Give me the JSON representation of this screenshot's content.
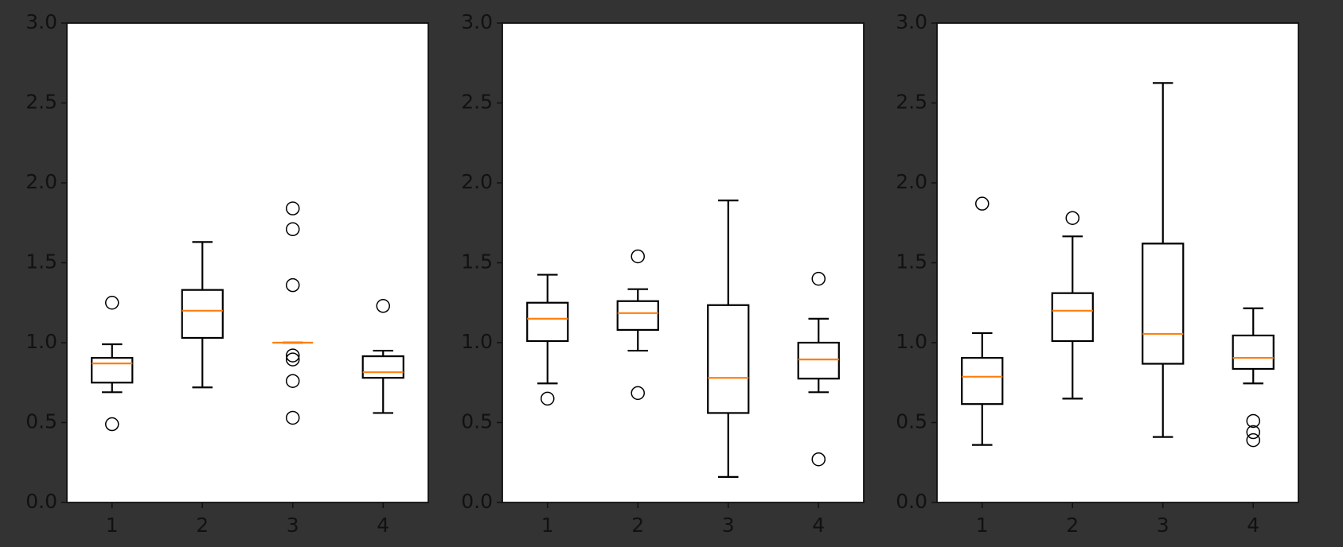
{
  "chart_data": [
    {
      "type": "box",
      "categories": [
        "1",
        "2",
        "3",
        "4"
      ],
      "xlim": [
        0.5,
        4.5
      ],
      "ylim": [
        0,
        3
      ],
      "yticks": [
        {
          "value": 0,
          "label": "0.0"
        },
        {
          "value": 0.5,
          "label": "0.5"
        },
        {
          "value": 1,
          "label": "1.0"
        },
        {
          "value": 1.5,
          "label": "1.5"
        },
        {
          "value": 2,
          "label": "2.0"
        },
        {
          "value": 2.5,
          "label": "2.5"
        },
        {
          "value": 3,
          "label": "3.0"
        }
      ],
      "box_color": "#000000",
      "median_color": "#ff7f0e",
      "boxes": [
        {
          "whislo": 0.69,
          "q1": 0.75,
          "med": 0.87,
          "q3": 0.905,
          "whishi": 0.99,
          "fliers": [
            1.25,
            0.49
          ]
        },
        {
          "whislo": 0.72,
          "q1": 1.03,
          "med": 1.2,
          "q3": 1.33,
          "whishi": 1.63,
          "fliers": []
        },
        {
          "whislo": 1.0,
          "q1": 1.0,
          "med": 1.0,
          "q3": 1.0,
          "whishi": 1.0,
          "fliers": [
            1.84,
            1.71,
            1.36,
            0.92,
            0.895,
            0.76,
            0.53
          ]
        },
        {
          "whislo": 0.56,
          "q1": 0.78,
          "med": 0.815,
          "q3": 0.915,
          "whishi": 0.95,
          "fliers": [
            1.23
          ]
        }
      ]
    },
    {
      "type": "box",
      "categories": [
        "1",
        "2",
        "3",
        "4"
      ],
      "xlim": [
        0.5,
        4.5
      ],
      "ylim": [
        0,
        3
      ],
      "yticks": [
        {
          "value": 0,
          "label": "0.0"
        },
        {
          "value": 0.5,
          "label": "0.5"
        },
        {
          "value": 1,
          "label": "1.0"
        },
        {
          "value": 1.5,
          "label": "1.5"
        },
        {
          "value": 2,
          "label": "2.0"
        },
        {
          "value": 2.5,
          "label": "2.5"
        },
        {
          "value": 3,
          "label": "3.0"
        }
      ],
      "box_color": "#000000",
      "median_color": "#ff7f0e",
      "boxes": [
        {
          "whislo": 0.745,
          "q1": 1.01,
          "med": 1.15,
          "q3": 1.25,
          "whishi": 1.425,
          "fliers": [
            0.65
          ]
        },
        {
          "whislo": 0.95,
          "q1": 1.08,
          "med": 1.185,
          "q3": 1.26,
          "whishi": 1.335,
          "fliers": [
            1.54,
            0.685
          ]
        },
        {
          "whislo": 0.16,
          "q1": 0.56,
          "med": 0.78,
          "q3": 1.235,
          "whishi": 1.89,
          "fliers": []
        },
        {
          "whislo": 0.69,
          "q1": 0.775,
          "med": 0.895,
          "q3": 1.0,
          "whishi": 1.15,
          "fliers": [
            1.4,
            0.27
          ]
        }
      ]
    },
    {
      "type": "box",
      "categories": [
        "1",
        "2",
        "3",
        "4"
      ],
      "xlim": [
        0.5,
        4.5
      ],
      "ylim": [
        0,
        3
      ],
      "yticks": [
        {
          "value": 0,
          "label": "0.0"
        },
        {
          "value": 0.5,
          "label": "0.5"
        },
        {
          "value": 1,
          "label": "1.0"
        },
        {
          "value": 1.5,
          "label": "1.5"
        },
        {
          "value": 2,
          "label": "2.0"
        },
        {
          "value": 2.5,
          "label": "2.5"
        },
        {
          "value": 3,
          "label": "3.0"
        }
      ],
      "box_color": "#000000",
      "median_color": "#ff7f0e",
      "boxes": [
        {
          "whislo": 0.36,
          "q1": 0.616,
          "med": 0.787,
          "q3": 0.905,
          "whishi": 1.06,
          "fliers": [
            1.87
          ]
        },
        {
          "whislo": 0.65,
          "q1": 1.01,
          "med": 1.2,
          "q3": 1.31,
          "whishi": 1.665,
          "fliers": [
            1.78
          ]
        },
        {
          "whislo": 0.41,
          "q1": 0.868,
          "med": 1.055,
          "q3": 1.62,
          "whishi": 2.625,
          "fliers": []
        },
        {
          "whislo": 0.745,
          "q1": 0.836,
          "med": 0.905,
          "q3": 1.045,
          "whishi": 1.215,
          "fliers": [
            0.51,
            0.44,
            0.39
          ]
        }
      ]
    }
  ]
}
